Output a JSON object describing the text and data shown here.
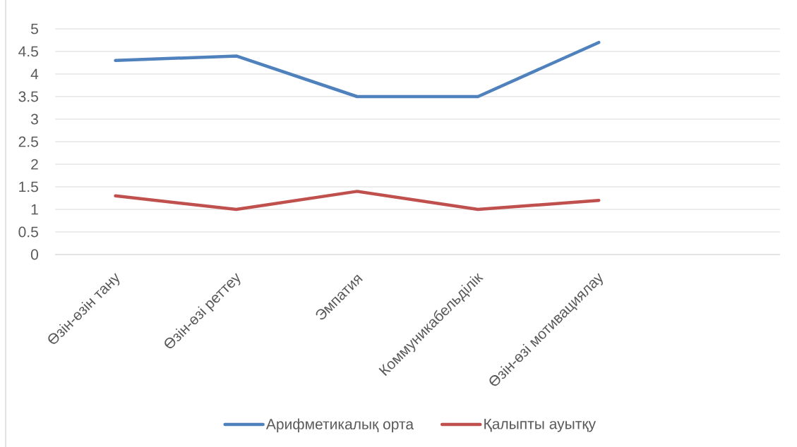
{
  "chart_data": {
    "type": "line",
    "categories": [
      "Өзін-өзін тану",
      "Өзін-өзі реттеу",
      "Эмпатия",
      "Коммуникабельділік",
      "Өзін-өзі мотивациялау",
      null
    ],
    "series": [
      {
        "name": "Арифметикалық орта",
        "color": "#4f81bd",
        "values": [
          4.3,
          4.4,
          3.5,
          3.5,
          4.7,
          null
        ]
      },
      {
        "name": "Қалыпты ауытқу",
        "color": "#c0504d",
        "values": [
          1.3,
          1.0,
          1.4,
          1.0,
          1.2,
          null
        ]
      }
    ],
    "ylim": [
      0,
      5
    ],
    "yticks": [
      0,
      0.5,
      1,
      1.5,
      2,
      2.5,
      3,
      3.5,
      4,
      4.5,
      5
    ],
    "grid": "y",
    "legend": "bottom",
    "marker": "none",
    "line_style": "solid"
  }
}
